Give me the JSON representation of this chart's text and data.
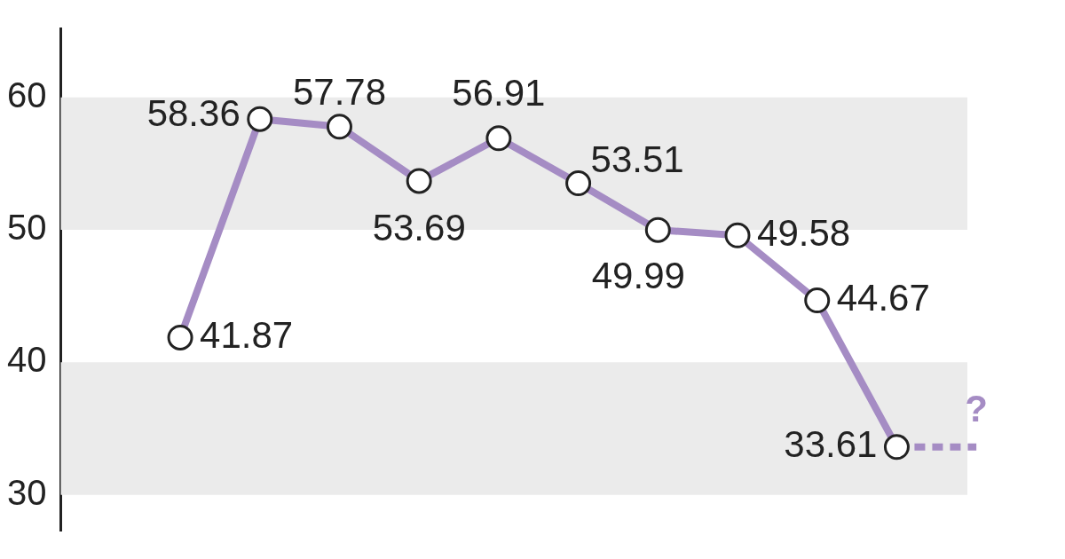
{
  "chart_data": {
    "type": "line",
    "categories": [
      null,
      null,
      null,
      null,
      null,
      null,
      null,
      null,
      null,
      null,
      null,
      null
    ],
    "series": [
      {
        "color": "#a58cc4",
        "values": [
          null,
          41.87,
          58.36,
          57.78,
          53.69,
          56.91,
          53.51,
          49.99,
          49.58,
          44.67,
          33.61,
          null
        ],
        "value_labels": [
          null,
          "41.87",
          "58.36",
          "57.78",
          "53.69",
          "56.91",
          "53.51",
          "49.99",
          "49.58",
          "44.67",
          "33.61",
          null
        ],
        "marker": "circle",
        "line_style": "solid"
      },
      {
        "color": "#a58cc4",
        "values": [
          null,
          null,
          null,
          null,
          null,
          null,
          null,
          null,
          null,
          null,
          33.61,
          33.61
        ],
        "line_style": "dashed"
      }
    ],
    "ylim": [
      27.3,
      65.2
    ],
    "yticks": [
      30,
      40,
      50,
      60
    ],
    "grid": false,
    "legend": false,
    "bands": [
      {
        "axis": "y",
        "from": 50,
        "to": 60,
        "color": "#ebebeb"
      },
      {
        "axis": "y",
        "from": 30,
        "to": 40,
        "color": "#ebebeb"
      }
    ],
    "annotations": [
      {
        "text": "?",
        "y": 33.61
      }
    ]
  }
}
